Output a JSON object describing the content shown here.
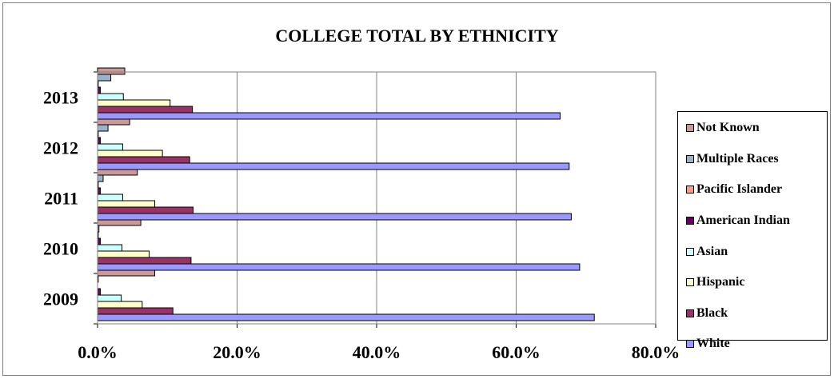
{
  "chart_data": {
    "type": "bar",
    "orientation": "horizontal",
    "title": "COLLEGE TOTAL BY ETHNICITY",
    "categories": [
      "2009",
      "2010",
      "2011",
      "2012",
      "2013"
    ],
    "x_ticks": [
      "0.0%",
      "20.0%",
      "40.0%",
      "60.0%",
      "80.0%"
    ],
    "xlim": [
      0,
      80
    ],
    "grid": true,
    "legend_position": "right",
    "series": [
      {
        "name": "Not Known",
        "color": "#cc9999",
        "values": [
          8.2,
          6.2,
          5.7,
          4.6,
          3.9
        ]
      },
      {
        "name": "Multiple Races",
        "color": "#99b3cc",
        "values": [
          0.1,
          0.2,
          0.8,
          1.5,
          1.9
        ]
      },
      {
        "name": "Pacific Islander",
        "color": "#ff9b85",
        "values": [
          0.0,
          0.1,
          0.1,
          0.1,
          0.1
        ]
      },
      {
        "name": "American Indian",
        "color": "#660066",
        "values": [
          0.4,
          0.4,
          0.4,
          0.4,
          0.4
        ]
      },
      {
        "name": "Asian",
        "color": "#ccffff",
        "values": [
          3.4,
          3.5,
          3.6,
          3.6,
          3.7
        ]
      },
      {
        "name": "Hispanic",
        "color": "#ffffcc",
        "values": [
          6.4,
          7.4,
          8.2,
          9.3,
          10.4
        ]
      },
      {
        "name": "Black",
        "color": "#993366",
        "values": [
          10.8,
          13.4,
          13.7,
          13.2,
          13.6
        ]
      },
      {
        "name": "White",
        "color": "#9999ff",
        "values": [
          71.2,
          69.1,
          67.9,
          67.6,
          66.3
        ]
      }
    ]
  }
}
